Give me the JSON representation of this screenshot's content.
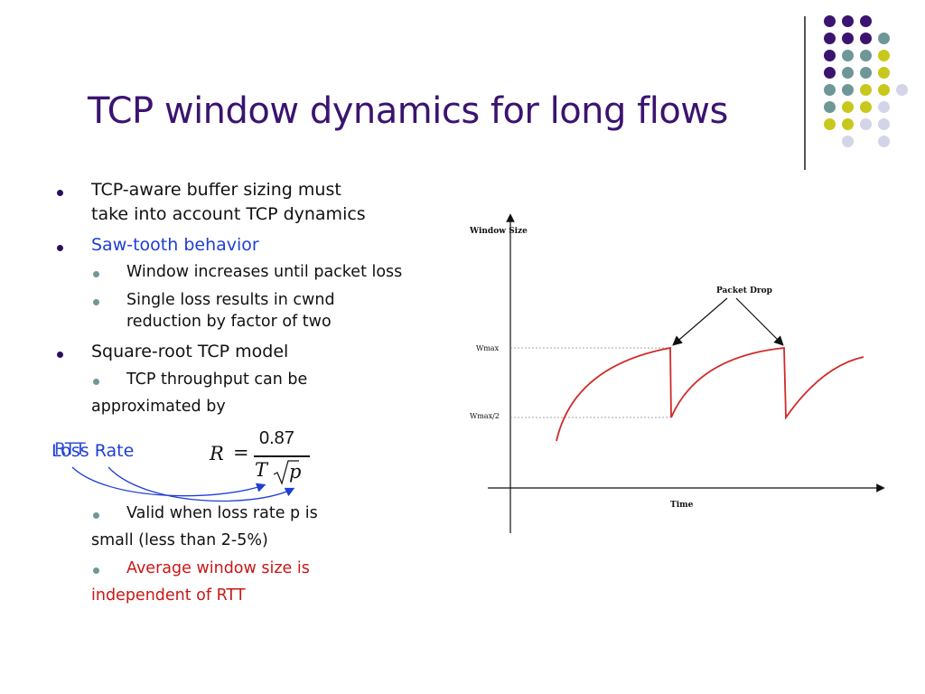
{
  "slide": {
    "title": "TCP window dynamics for long flows",
    "bullets": {
      "b1_line1": "TCP-aware buffer sizing must",
      "b1_line2": "take into account TCP dynamics",
      "b2": "Saw-tooth behavior",
      "b2_sub1": "Window increases until packet loss",
      "b2_sub2_line1": "Single loss results in cwnd",
      "b2_sub2_line2": "reduction by factor of two",
      "b3": "Square-root TCP model",
      "b3_sub1_line1": "TCP throughput can be",
      "b3_sub1_line2": "approximated by",
      "b3_sub2_line1": "Valid when loss rate p is",
      "b3_sub2_line2": "small (less than 2-5%)",
      "b3_sub3_line1": "Average window size is",
      "b3_sub3_line2": "independent of RTT"
    },
    "annotations": {
      "rtt": "RTT",
      "loss_rate": "Loss Rate"
    },
    "formula": {
      "lhs": "R",
      "equals": "=",
      "numerator": "0.87",
      "denominator_T": "T",
      "denominator_p": "p"
    },
    "colors": {
      "title": "#3b1370",
      "blue_text": "#1f3ed4",
      "red_text": "#cc1616",
      "purple_dot": "#3b1370",
      "teal_dot": "#6f9797",
      "yellow_dot": "#c8c81c",
      "lavender_dot": "#d4d4e8"
    }
  },
  "chart_data": {
    "type": "line",
    "ylabel": "Window Size",
    "xlabel": "Time",
    "y_ticks": [
      "Wmax/2",
      "Wmax"
    ],
    "annotation": "Packet Drop",
    "series": [
      {
        "values": []
      }
    ]
  }
}
